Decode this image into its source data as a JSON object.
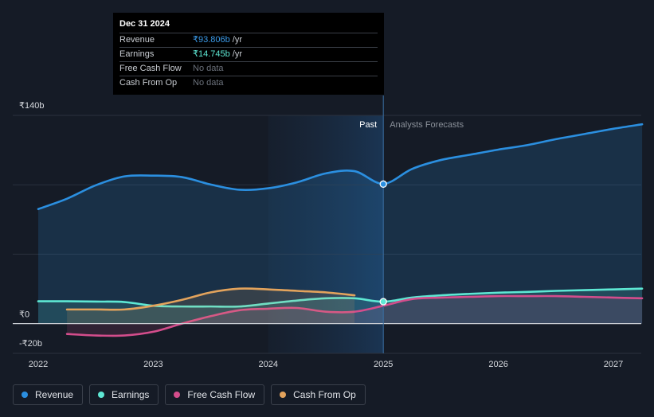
{
  "chart_data": {
    "type": "area",
    "y_unit_prefix": "₹",
    "ylim": [
      -20,
      140
    ],
    "xlim": [
      2022,
      2027.25
    ],
    "y_tick_labels": [
      {
        "value": 140,
        "label": "₹140b"
      },
      {
        "value": 0,
        "label": "₹0"
      },
      {
        "value": -20,
        "label": "-₹20b"
      }
    ],
    "x_tick_labels": [
      {
        "value": 2022,
        "label": "2022"
      },
      {
        "value": 2023,
        "label": "2023"
      },
      {
        "value": 2024,
        "label": "2024"
      },
      {
        "value": 2025,
        "label": "2025"
      },
      {
        "value": 2026,
        "label": "2026"
      },
      {
        "value": 2027,
        "label": "2027"
      }
    ],
    "divider_x": 2025,
    "highlight_band": [
      2024,
      2025
    ],
    "past_label": "Past",
    "forecast_label": "Analysts Forecasts",
    "series": [
      {
        "name": "Revenue",
        "color": "#2b8fe0",
        "fill": true,
        "x": [
          2022.0,
          2022.25,
          2022.5,
          2022.75,
          2023.0,
          2023.25,
          2023.5,
          2023.75,
          2024.0,
          2024.25,
          2024.5,
          2024.75,
          2025.0,
          2025.25,
          2025.5,
          2025.75,
          2026.0,
          2026.25,
          2026.5,
          2026.75,
          2027.0,
          2027.25
        ],
        "y": [
          77,
          84,
          93,
          99,
          99.5,
          98.5,
          93.5,
          90,
          91,
          95,
          101,
          102.5,
          94,
          104,
          110,
          113.5,
          117,
          120,
          124,
          127.5,
          131,
          134
        ]
      },
      {
        "name": "Earnings",
        "color": "#5ee8d4",
        "fill": true,
        "x": [
          2022.0,
          2022.25,
          2022.5,
          2022.75,
          2023.0,
          2023.25,
          2023.5,
          2023.75,
          2024.0,
          2024.25,
          2024.5,
          2024.75,
          2025.0,
          2025.25,
          2025.5,
          2025.75,
          2026.0,
          2026.25,
          2026.5,
          2026.75,
          2027.0,
          2027.25
        ],
        "y": [
          15,
          15,
          14.8,
          14.5,
          12,
          11.5,
          11.5,
          11.5,
          13.5,
          15.5,
          17,
          17,
          14.7,
          17.5,
          19,
          20,
          20.8,
          21.3,
          22,
          22.5,
          23,
          23.5
        ]
      },
      {
        "name": "Free Cash Flow",
        "color": "#d44d8c",
        "fill": true,
        "x": [
          2022.25,
          2022.5,
          2022.75,
          2023.0,
          2023.25,
          2023.5,
          2023.75,
          2024.0,
          2024.25,
          2024.5,
          2024.75,
          2025.0,
          2025.25,
          2025.5,
          2025.75,
          2026.0,
          2026.25,
          2026.5,
          2026.75,
          2027.0,
          2027.25
        ],
        "y": [
          -7,
          -8,
          -8,
          -5.5,
          0,
          5,
          9,
          10,
          10.5,
          8,
          8,
          12,
          16.5,
          17.5,
          18,
          18.5,
          18.5,
          18.5,
          18,
          17.5,
          17
        ]
      },
      {
        "name": "Cash From Op",
        "color": "#e3a35c",
        "fill": true,
        "x": [
          2022.25,
          2022.5,
          2022.75,
          2023.0,
          2023.25,
          2023.5,
          2023.75,
          2024.0,
          2024.25,
          2024.5,
          2024.75
        ],
        "y": [
          9.5,
          9.5,
          9.5,
          12,
          16,
          21,
          23.5,
          23,
          22,
          21,
          19
        ]
      }
    ],
    "markers": [
      {
        "series": "Revenue",
        "x": 2025,
        "y": 93.806
      },
      {
        "series": "Earnings",
        "x": 2025,
        "y": 14.745
      }
    ]
  },
  "tooltip": {
    "date": "Dec 31 2024",
    "rows": [
      {
        "label": "Revenue",
        "value": "₹93.806b",
        "unit": "/yr"
      },
      {
        "label": "Earnings",
        "value": "₹14.745b",
        "unit": "/yr"
      },
      {
        "label": "Free Cash Flow",
        "value": "No data",
        "unit": ""
      },
      {
        "label": "Cash From Op",
        "value": "No data",
        "unit": ""
      }
    ]
  },
  "legend": [
    {
      "label": "Revenue",
      "color": "#2b8fe0"
    },
    {
      "label": "Earnings",
      "color": "#5ee8d4"
    },
    {
      "label": "Free Cash Flow",
      "color": "#d44d8c"
    },
    {
      "label": "Cash From Op",
      "color": "#e3a35c"
    }
  ]
}
